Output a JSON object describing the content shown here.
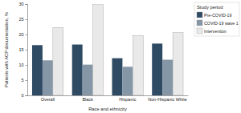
{
  "chart_data": {
    "type": "bar",
    "x_label": "Race and ethnicity",
    "y_label": "Patients with ACP documentation, %",
    "legend_title": "Study period",
    "legend": "upper right",
    "categories": [
      "Overall",
      "Black",
      "Hispanic",
      "Non-Hispanic White"
    ],
    "series": [
      {
        "name": "Pre-COVID-19",
        "color": "#2f4a63",
        "values": [
          16.5,
          16.7,
          12.2,
          17.0
        ]
      },
      {
        "name": "COVID-19 wave 1",
        "color": "#8596a6",
        "values": [
          11.5,
          10.1,
          9.4,
          11.7
        ]
      },
      {
        "name": "Intervention",
        "color": "#e9e9e9",
        "values": [
          22.3,
          29.8,
          19.6,
          20.6
        ]
      }
    ],
    "ylim": [
      0,
      30
    ],
    "yticks": [
      0,
      5,
      10,
      15,
      20,
      25,
      30
    ],
    "grid": false
  }
}
